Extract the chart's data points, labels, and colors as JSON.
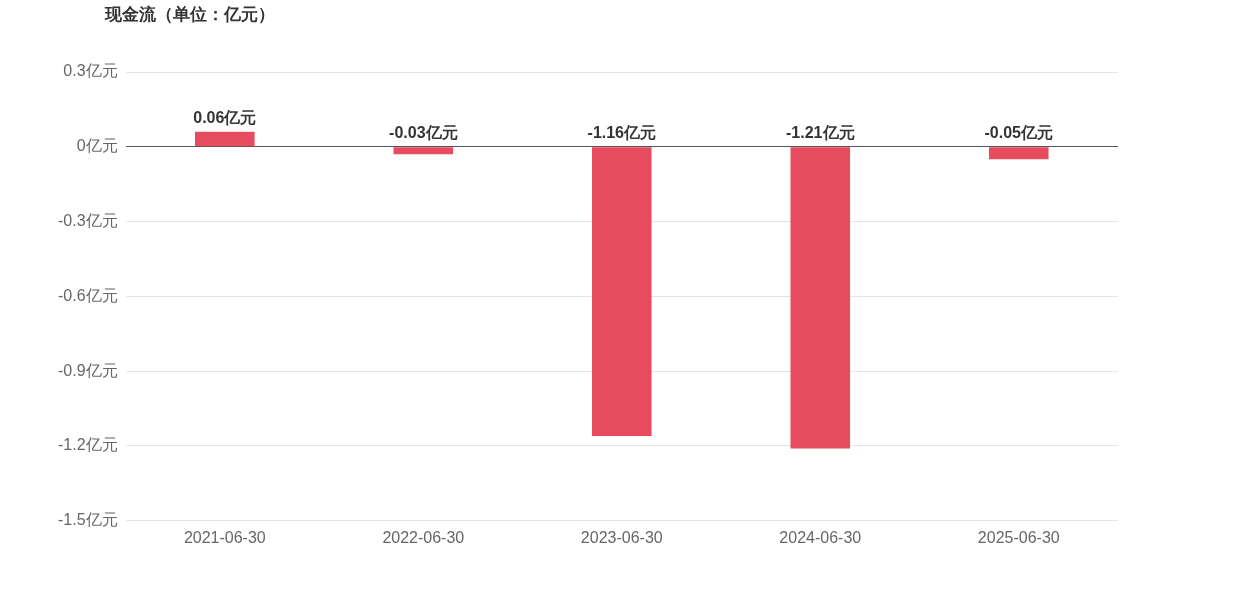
{
  "chart_data": {
    "type": "bar",
    "title": "现金流（单位：亿元）",
    "categories": [
      "2021-06-30",
      "2022-06-30",
      "2023-06-30",
      "2024-06-30",
      "2025-06-30"
    ],
    "series": [
      {
        "color": "#e64c5e",
        "values": [
          0.06,
          -0.03,
          -1.16,
          -1.21,
          -0.05
        ],
        "value_labels": [
          "0.06亿元",
          "-0.03亿元",
          "-1.16亿元",
          "-1.21亿元",
          "-0.05亿元"
        ]
      }
    ],
    "ylim": [
      -1.5,
      0.3
    ],
    "yticks": [
      {
        "value": 0.3,
        "label": "0.3亿元"
      },
      {
        "value": 0,
        "label": "0亿元"
      },
      {
        "value": -0.3,
        "label": "-0.3亿元"
      },
      {
        "value": -0.6,
        "label": "-0.6亿元"
      },
      {
        "value": -0.9,
        "label": "-0.9亿元"
      },
      {
        "value": -1.2,
        "label": "-1.2亿元"
      },
      {
        "value": -1.5,
        "label": "-1.5亿元"
      }
    ],
    "grid": "y",
    "legend": false
  }
}
